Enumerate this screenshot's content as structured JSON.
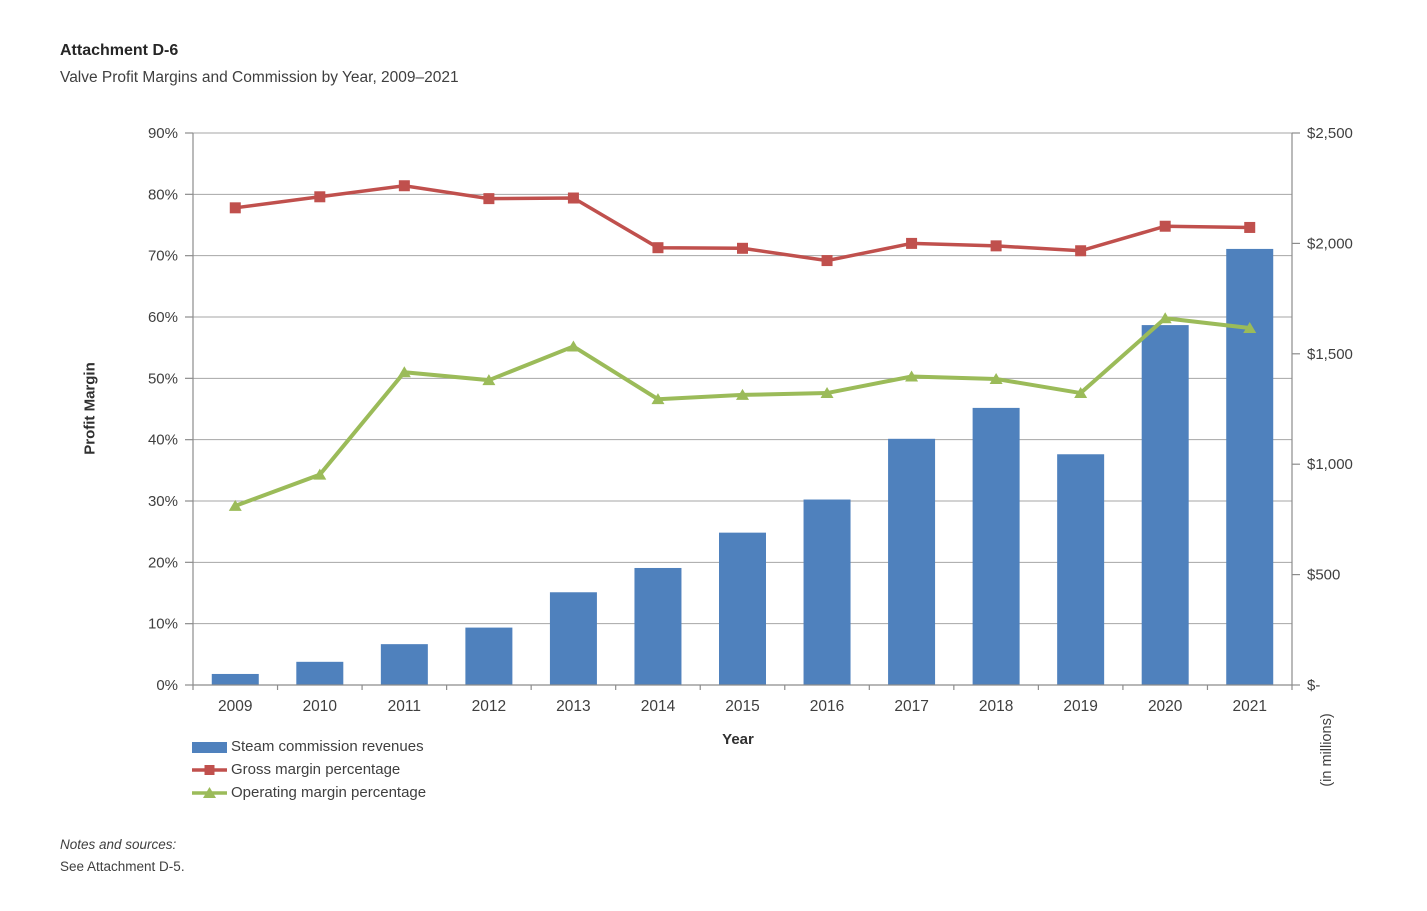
{
  "page": {
    "title": "Attachment D-6",
    "subtitle": "Valve Profit Margins and Commission by Year, 2009–2021",
    "notes_heading": "Notes and sources:",
    "notes_body": "See Attachment D-5."
  },
  "chart_data": {
    "type": "combo",
    "title": "Valve Profit Margins and Commission by Year, 2009–2021",
    "categories": [
      "2009",
      "2010",
      "2011",
      "2012",
      "2013",
      "2014",
      "2015",
      "2016",
      "2017",
      "2018",
      "2019",
      "2020",
      "2021"
    ],
    "series": [
      {
        "name": "Steam commission revenues",
        "type": "bar",
        "axis": "right",
        "units": "USD millions",
        "color": "#4F81BD",
        "values": [
          50,
          105,
          185,
          260,
          420,
          530,
          690,
          840,
          1115,
          1255,
          1045,
          1630,
          1975
        ]
      },
      {
        "name": "Gross margin percentage",
        "type": "line",
        "marker": "square",
        "axis": "left",
        "units": "percent",
        "color": "#C0504D",
        "values": [
          77.8,
          79.6,
          81.4,
          79.3,
          79.4,
          71.3,
          71.2,
          69.2,
          72,
          71.6,
          70.8,
          74.8,
          74.6
        ]
      },
      {
        "name": "Operating margin percentage",
        "type": "line",
        "marker": "triangle",
        "axis": "left",
        "units": "percent",
        "color": "#9BBB59",
        "values": [
          29.2,
          34.3,
          51,
          49.7,
          55.2,
          46.6,
          47.3,
          47.6,
          50.3,
          49.9,
          47.6,
          59.8,
          58.2
        ]
      }
    ],
    "x_axis": {
      "title": "Year"
    },
    "left_axis": {
      "title": "Profit Margin",
      "min": 0,
      "max": 90,
      "tick_step": 10,
      "tick_labels": [
        "0%",
        "10%",
        "20%",
        "30%",
        "40%",
        "50%",
        "60%",
        "70%",
        "80%",
        "90%"
      ]
    },
    "right_axis": {
      "title": "(in millions)",
      "min": 0,
      "max": 2500,
      "tick_step": 500,
      "tick_labels": [
        "$-",
        "$500",
        "$1,000",
        "$1,500",
        "$2,000",
        "$2,500"
      ]
    },
    "grid": "horizontal",
    "legend_position": "bottom-left"
  },
  "colors": {
    "grid": "#A6A6A6",
    "axis": "#8C8C8C",
    "text": "#3F3F3F"
  }
}
